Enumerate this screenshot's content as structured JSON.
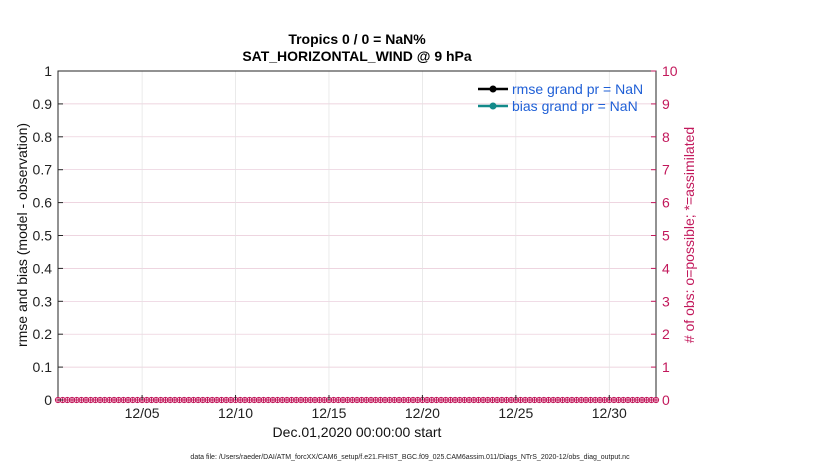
{
  "chart_data": {
    "type": "line",
    "title": "Tropics 0 / 0 = NaN%",
    "subtitle": "SAT_HORIZONTAL_WIND @ 9 hPa",
    "xlabel": "Dec.01,2020 00:00:00 start",
    "ylabel": "rmse and bias (model - observation)",
    "y2label": "# of obs: o=possible; *=assimilated",
    "xlim": [
      0.5,
      32.5
    ],
    "ylim": [
      0,
      1
    ],
    "y2lim": [
      0,
      10
    ],
    "xticks": [
      5,
      10,
      15,
      20,
      25,
      30
    ],
    "xtick_labels": [
      "12/05",
      "12/10",
      "12/15",
      "12/20",
      "12/25",
      "12/30"
    ],
    "yticks": [
      0,
      0.1,
      0.2,
      0.3,
      0.4,
      0.5,
      0.6,
      0.7,
      0.8,
      0.9,
      1
    ],
    "ytick_labels": [
      "0",
      "0.1",
      "0.2",
      "0.3",
      "0.4",
      "0.5",
      "0.6",
      "0.7",
      "0.8",
      "0.9",
      "1"
    ],
    "y2ticks": [
      0,
      1,
      2,
      3,
      4,
      5,
      6,
      7,
      8,
      9,
      10
    ],
    "y2tick_labels": [
      "0",
      "1",
      "2",
      "3",
      "4",
      "5",
      "6",
      "7",
      "8",
      "9",
      "10"
    ],
    "grid": true,
    "legend_position": "top-right",
    "series": [
      {
        "name": "rmse grand pr = NaN",
        "color": "#000000",
        "marker": "dot",
        "values": []
      },
      {
        "name": "bias grand pr = NaN",
        "color": "#138a8a",
        "marker": "dot",
        "values": []
      }
    ],
    "obs_counts": {
      "color": "#c2185b",
      "x_start": 0.5,
      "x_end": 32.5,
      "step": 0.25,
      "value": 0
    },
    "footer": "data file: /Users/raeder/DAI/ATM_forcXX/CAM6_setup/f.e21.FHIST_BGC.f09_025.CAM6assim.011/Diags_NTrS_2020-12/obs_diag_output.nc"
  }
}
